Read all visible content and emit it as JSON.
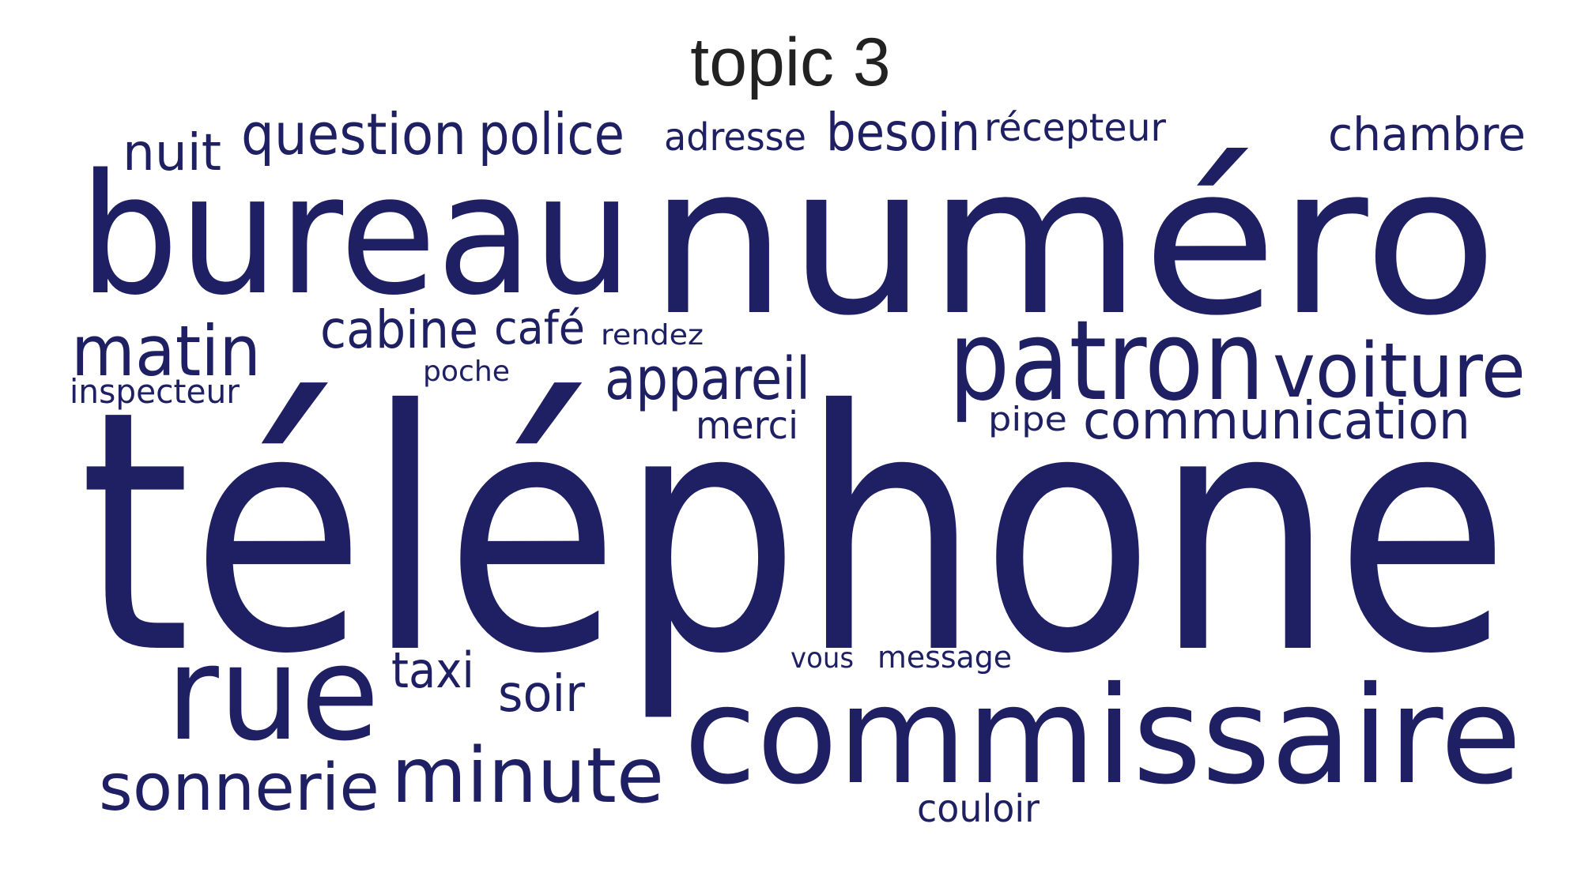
{
  "title": "topic 3",
  "word_color": "#1f1f63",
  "words": [
    {
      "text": "téléphone",
      "weight": 1.0
    },
    {
      "text": "numéro",
      "weight": 0.62
    },
    {
      "text": "bureau",
      "weight": 0.52
    },
    {
      "text": "commissaire",
      "weight": 0.41
    },
    {
      "text": "patron",
      "weight": 0.33
    },
    {
      "text": "rue",
      "weight": 0.4
    },
    {
      "text": "minute",
      "weight": 0.22
    },
    {
      "text": "sonnerie",
      "weight": 0.19
    },
    {
      "text": "voiture",
      "weight": 0.21
    },
    {
      "text": "matin",
      "weight": 0.2
    },
    {
      "text": "communication",
      "weight": 0.14
    },
    {
      "text": "appareil",
      "weight": 0.15
    },
    {
      "text": "question",
      "weight": 0.14
    },
    {
      "text": "police",
      "weight": 0.14
    },
    {
      "text": "besoin",
      "weight": 0.13
    },
    {
      "text": "cabine",
      "weight": 0.13
    },
    {
      "text": "chambre",
      "weight": 0.11
    },
    {
      "text": "nuit",
      "weight": 0.12
    },
    {
      "text": "soir",
      "weight": 0.12
    },
    {
      "text": "taxi",
      "weight": 0.12
    },
    {
      "text": "café",
      "weight": 0.11
    },
    {
      "text": "adresse",
      "weight": 0.09
    },
    {
      "text": "récepteur",
      "weight": 0.09
    },
    {
      "text": "couloir",
      "weight": 0.09
    },
    {
      "text": "merci",
      "weight": 0.09
    },
    {
      "text": "inspecteur",
      "weight": 0.08
    },
    {
      "text": "pipe",
      "weight": 0.08
    },
    {
      "text": "message",
      "weight": 0.08
    },
    {
      "text": "rendez",
      "weight": 0.07
    },
    {
      "text": "poche",
      "weight": 0.07
    },
    {
      "text": "vous",
      "weight": 0.07
    }
  ]
}
